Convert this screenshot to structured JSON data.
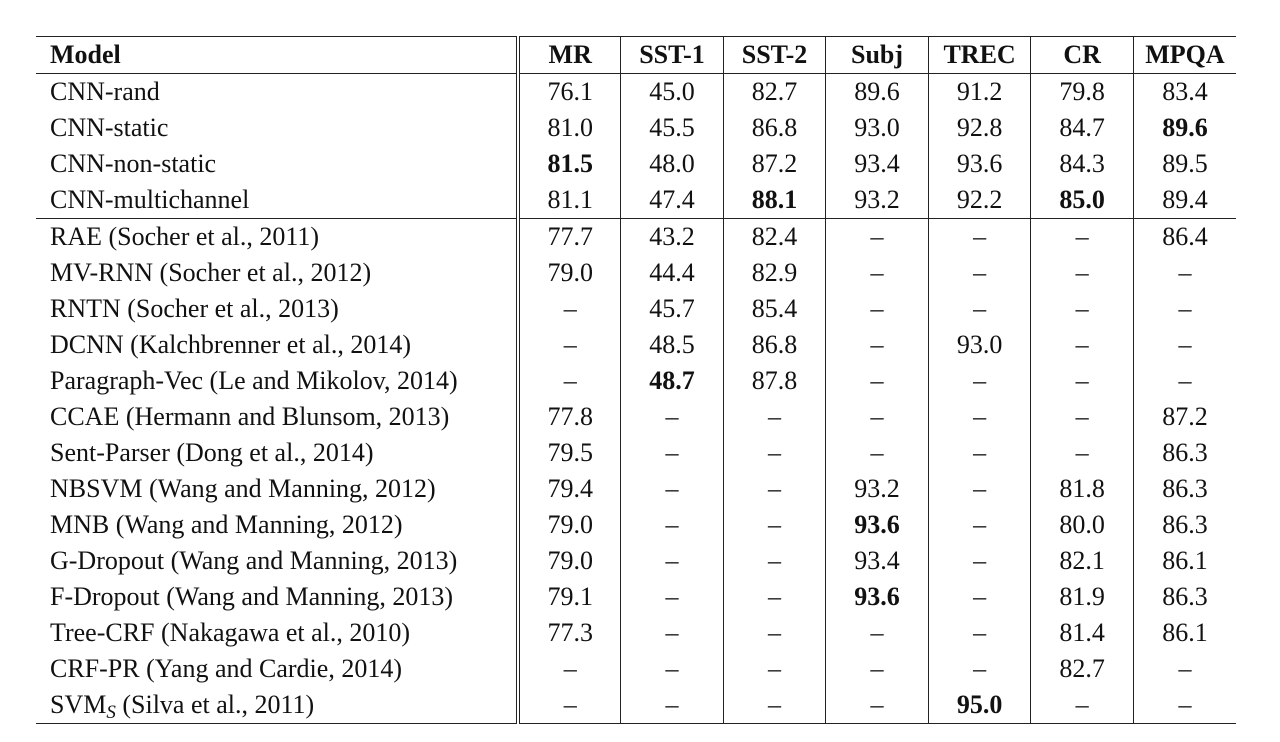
{
  "table": {
    "headers": [
      "Model",
      "MR",
      "SST-1",
      "SST-2",
      "Subj",
      "TREC",
      "CR",
      "MPQA"
    ],
    "groups": [
      [
        {
          "model": "CNN-rand",
          "values": [
            "76.1",
            "45.0",
            "82.7",
            "89.6",
            "91.2",
            "79.8",
            "83.4"
          ],
          "bold": []
        },
        {
          "model": "CNN-static",
          "values": [
            "81.0",
            "45.5",
            "86.8",
            "93.0",
            "92.8",
            "84.7",
            "89.6"
          ],
          "bold": [
            6
          ]
        },
        {
          "model": "CNN-non-static",
          "values": [
            "81.5",
            "48.0",
            "87.2",
            "93.4",
            "93.6",
            "84.3",
            "89.5"
          ],
          "bold": [
            0
          ]
        },
        {
          "model": "CNN-multichannel",
          "values": [
            "81.1",
            "47.4",
            "88.1",
            "93.2",
            "92.2",
            "85.0",
            "89.4"
          ],
          "bold": [
            2,
            5
          ]
        }
      ],
      [
        {
          "model": "RAE (Socher et al., 2011)",
          "values": [
            "77.7",
            "43.2",
            "82.4",
            "–",
            "–",
            "–",
            "86.4"
          ],
          "bold": []
        },
        {
          "model": "MV-RNN (Socher et al., 2012)",
          "values": [
            "79.0",
            "44.4",
            "82.9",
            "–",
            "–",
            "–",
            "–"
          ],
          "bold": []
        },
        {
          "model": "RNTN (Socher et al., 2013)",
          "values": [
            "–",
            "45.7",
            "85.4",
            "–",
            "–",
            "–",
            "–"
          ],
          "bold": []
        },
        {
          "model": "DCNN (Kalchbrenner et al., 2014)",
          "values": [
            "–",
            "48.5",
            "86.8",
            "–",
            "93.0",
            "–",
            "–"
          ],
          "bold": []
        },
        {
          "model": "Paragraph-Vec (Le and Mikolov, 2014)",
          "values": [
            "–",
            "48.7",
            "87.8",
            "–",
            "–",
            "–",
            "–"
          ],
          "bold": [
            1
          ]
        },
        {
          "model": "CCAE (Hermann and Blunsom, 2013)",
          "values": [
            "77.8",
            "–",
            "–",
            "–",
            "–",
            "–",
            "87.2"
          ],
          "bold": []
        },
        {
          "model": "Sent-Parser (Dong et al., 2014)",
          "values": [
            "79.5",
            "–",
            "–",
            "–",
            "–",
            "–",
            "86.3"
          ],
          "bold": []
        },
        {
          "model": "NBSVM (Wang and Manning, 2012)",
          "values": [
            "79.4",
            "–",
            "–",
            "93.2",
            "–",
            "81.8",
            "86.3"
          ],
          "bold": []
        },
        {
          "model": "MNB (Wang and Manning, 2012)",
          "values": [
            "79.0",
            "–",
            "–",
            "93.6",
            "–",
            "80.0",
            "86.3"
          ],
          "bold": [
            3
          ]
        },
        {
          "model": "G-Dropout (Wang and Manning, 2013)",
          "values": [
            "79.0",
            "–",
            "–",
            "93.4",
            "–",
            "82.1",
            "86.1"
          ],
          "bold": []
        },
        {
          "model": "F-Dropout (Wang and Manning, 2013)",
          "values": [
            "79.1",
            "–",
            "–",
            "93.6",
            "–",
            "81.9",
            "86.3"
          ],
          "bold": [
            3
          ]
        },
        {
          "model": "Tree-CRF (Nakagawa et al., 2010)",
          "values": [
            "77.3",
            "–",
            "–",
            "–",
            "–",
            "81.4",
            "86.1"
          ],
          "bold": []
        },
        {
          "model": "CRF-PR (Yang and Cardie, 2014)",
          "values": [
            "–",
            "–",
            "–",
            "–",
            "–",
            "82.7",
            "–"
          ],
          "bold": []
        },
        {
          "model": "SVM",
          "model_sub": "S",
          "model_rest": " (Silva et al., 2011)",
          "values": [
            "–",
            "–",
            "–",
            "–",
            "95.0",
            "–",
            "–"
          ],
          "bold": [
            4
          ]
        }
      ]
    ]
  }
}
